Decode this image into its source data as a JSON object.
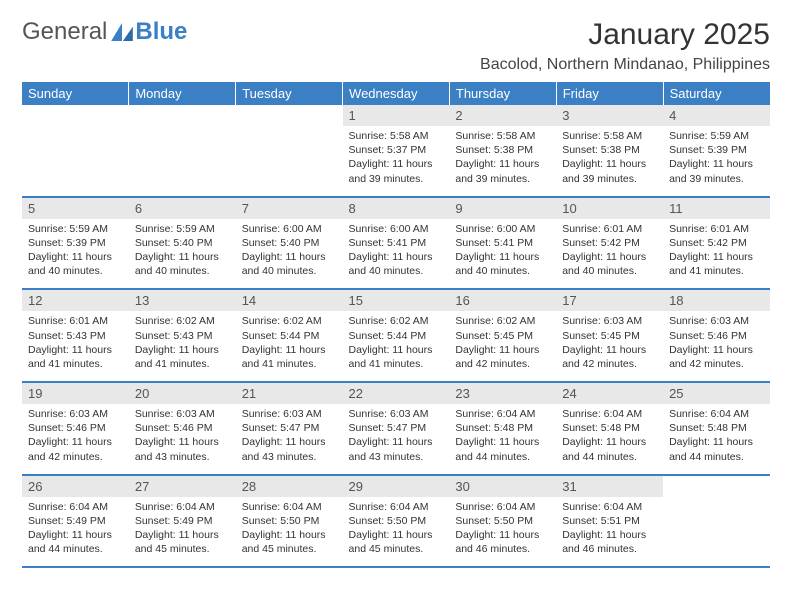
{
  "logo": {
    "text1": "General",
    "text2": "Blue",
    "icon_color": "#3b7fc4"
  },
  "title": "January 2025",
  "location": "Bacolod, Northern Mindanao, Philippines",
  "header_bg": "#3b7fc4",
  "header_fg": "#ffffff",
  "daynum_bg": "#e8e8e8",
  "row_border": "#3b7fc4",
  "weekdays": [
    "Sunday",
    "Monday",
    "Tuesday",
    "Wednesday",
    "Thursday",
    "Friday",
    "Saturday"
  ],
  "weeks": [
    [
      null,
      null,
      null,
      {
        "n": "1",
        "sr": "Sunrise: 5:58 AM",
        "ss": "Sunset: 5:37 PM",
        "dl1": "Daylight: 11 hours",
        "dl2": "and 39 minutes."
      },
      {
        "n": "2",
        "sr": "Sunrise: 5:58 AM",
        "ss": "Sunset: 5:38 PM",
        "dl1": "Daylight: 11 hours",
        "dl2": "and 39 minutes."
      },
      {
        "n": "3",
        "sr": "Sunrise: 5:58 AM",
        "ss": "Sunset: 5:38 PM",
        "dl1": "Daylight: 11 hours",
        "dl2": "and 39 minutes."
      },
      {
        "n": "4",
        "sr": "Sunrise: 5:59 AM",
        "ss": "Sunset: 5:39 PM",
        "dl1": "Daylight: 11 hours",
        "dl2": "and 39 minutes."
      }
    ],
    [
      {
        "n": "5",
        "sr": "Sunrise: 5:59 AM",
        "ss": "Sunset: 5:39 PM",
        "dl1": "Daylight: 11 hours",
        "dl2": "and 40 minutes."
      },
      {
        "n": "6",
        "sr": "Sunrise: 5:59 AM",
        "ss": "Sunset: 5:40 PM",
        "dl1": "Daylight: 11 hours",
        "dl2": "and 40 minutes."
      },
      {
        "n": "7",
        "sr": "Sunrise: 6:00 AM",
        "ss": "Sunset: 5:40 PM",
        "dl1": "Daylight: 11 hours",
        "dl2": "and 40 minutes."
      },
      {
        "n": "8",
        "sr": "Sunrise: 6:00 AM",
        "ss": "Sunset: 5:41 PM",
        "dl1": "Daylight: 11 hours",
        "dl2": "and 40 minutes."
      },
      {
        "n": "9",
        "sr": "Sunrise: 6:00 AM",
        "ss": "Sunset: 5:41 PM",
        "dl1": "Daylight: 11 hours",
        "dl2": "and 40 minutes."
      },
      {
        "n": "10",
        "sr": "Sunrise: 6:01 AM",
        "ss": "Sunset: 5:42 PM",
        "dl1": "Daylight: 11 hours",
        "dl2": "and 40 minutes."
      },
      {
        "n": "11",
        "sr": "Sunrise: 6:01 AM",
        "ss": "Sunset: 5:42 PM",
        "dl1": "Daylight: 11 hours",
        "dl2": "and 41 minutes."
      }
    ],
    [
      {
        "n": "12",
        "sr": "Sunrise: 6:01 AM",
        "ss": "Sunset: 5:43 PM",
        "dl1": "Daylight: 11 hours",
        "dl2": "and 41 minutes."
      },
      {
        "n": "13",
        "sr": "Sunrise: 6:02 AM",
        "ss": "Sunset: 5:43 PM",
        "dl1": "Daylight: 11 hours",
        "dl2": "and 41 minutes."
      },
      {
        "n": "14",
        "sr": "Sunrise: 6:02 AM",
        "ss": "Sunset: 5:44 PM",
        "dl1": "Daylight: 11 hours",
        "dl2": "and 41 minutes."
      },
      {
        "n": "15",
        "sr": "Sunrise: 6:02 AM",
        "ss": "Sunset: 5:44 PM",
        "dl1": "Daylight: 11 hours",
        "dl2": "and 41 minutes."
      },
      {
        "n": "16",
        "sr": "Sunrise: 6:02 AM",
        "ss": "Sunset: 5:45 PM",
        "dl1": "Daylight: 11 hours",
        "dl2": "and 42 minutes."
      },
      {
        "n": "17",
        "sr": "Sunrise: 6:03 AM",
        "ss": "Sunset: 5:45 PM",
        "dl1": "Daylight: 11 hours",
        "dl2": "and 42 minutes."
      },
      {
        "n": "18",
        "sr": "Sunrise: 6:03 AM",
        "ss": "Sunset: 5:46 PM",
        "dl1": "Daylight: 11 hours",
        "dl2": "and 42 minutes."
      }
    ],
    [
      {
        "n": "19",
        "sr": "Sunrise: 6:03 AM",
        "ss": "Sunset: 5:46 PM",
        "dl1": "Daylight: 11 hours",
        "dl2": "and 42 minutes."
      },
      {
        "n": "20",
        "sr": "Sunrise: 6:03 AM",
        "ss": "Sunset: 5:46 PM",
        "dl1": "Daylight: 11 hours",
        "dl2": "and 43 minutes."
      },
      {
        "n": "21",
        "sr": "Sunrise: 6:03 AM",
        "ss": "Sunset: 5:47 PM",
        "dl1": "Daylight: 11 hours",
        "dl2": "and 43 minutes."
      },
      {
        "n": "22",
        "sr": "Sunrise: 6:03 AM",
        "ss": "Sunset: 5:47 PM",
        "dl1": "Daylight: 11 hours",
        "dl2": "and 43 minutes."
      },
      {
        "n": "23",
        "sr": "Sunrise: 6:04 AM",
        "ss": "Sunset: 5:48 PM",
        "dl1": "Daylight: 11 hours",
        "dl2": "and 44 minutes."
      },
      {
        "n": "24",
        "sr": "Sunrise: 6:04 AM",
        "ss": "Sunset: 5:48 PM",
        "dl1": "Daylight: 11 hours",
        "dl2": "and 44 minutes."
      },
      {
        "n": "25",
        "sr": "Sunrise: 6:04 AM",
        "ss": "Sunset: 5:48 PM",
        "dl1": "Daylight: 11 hours",
        "dl2": "and 44 minutes."
      }
    ],
    [
      {
        "n": "26",
        "sr": "Sunrise: 6:04 AM",
        "ss": "Sunset: 5:49 PM",
        "dl1": "Daylight: 11 hours",
        "dl2": "and 44 minutes."
      },
      {
        "n": "27",
        "sr": "Sunrise: 6:04 AM",
        "ss": "Sunset: 5:49 PM",
        "dl1": "Daylight: 11 hours",
        "dl2": "and 45 minutes."
      },
      {
        "n": "28",
        "sr": "Sunrise: 6:04 AM",
        "ss": "Sunset: 5:50 PM",
        "dl1": "Daylight: 11 hours",
        "dl2": "and 45 minutes."
      },
      {
        "n": "29",
        "sr": "Sunrise: 6:04 AM",
        "ss": "Sunset: 5:50 PM",
        "dl1": "Daylight: 11 hours",
        "dl2": "and 45 minutes."
      },
      {
        "n": "30",
        "sr": "Sunrise: 6:04 AM",
        "ss": "Sunset: 5:50 PM",
        "dl1": "Daylight: 11 hours",
        "dl2": "and 46 minutes."
      },
      {
        "n": "31",
        "sr": "Sunrise: 6:04 AM",
        "ss": "Sunset: 5:51 PM",
        "dl1": "Daylight: 11 hours",
        "dl2": "and 46 minutes."
      },
      null
    ]
  ]
}
